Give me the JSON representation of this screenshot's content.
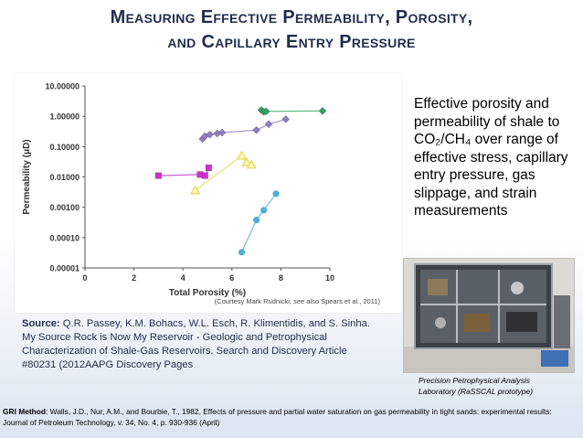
{
  "slide": {
    "title_line1": "Measuring Effective Permeability, Porosity,",
    "title_line2": "and Capillary Entry Pressure"
  },
  "side_text": "Effective porosity and permeability of shale to CO₂/CH₄ over range of effective stress, capillary entry pressure, gas slippage, and strain measurements",
  "photo": {
    "caption": "Precision Petrophysical Analysis Laboratory (RaSSCAL prototype)"
  },
  "source": {
    "label": "Source:",
    "text": "Q.R. Passey, K.M. Bohacs, W.L. Esch, R. Klimentidis, and S. Sinha. My Source Rock is Now My Reservoir - Geologic and Petrophysical Characterization of Shale-Gas Reservoirs. Search and Discovery Article #80231 (2012AAPG Discovery Pages"
  },
  "gri": {
    "label": "GRI Method",
    "text": ": Walls, J.D., Nur, A.M., and Bourbie, T., 1982, Effects of pressure and partial water saturation on gas permeability in tight sands: experimental results: Journal of Petroleum Technology, v. 34, No. 4, p. 930-936 (April)"
  },
  "chart_data": {
    "type": "scatter",
    "xlabel": "Total Porosity (%)",
    "ylabel": "Permeability (μD)",
    "xlim": [
      0,
      10
    ],
    "ylim": [
      1e-05,
      10
    ],
    "y_scale": "log",
    "x_ticks": [
      "0",
      "2",
      "4",
      "6",
      "8",
      "10"
    ],
    "y_ticks": [
      "0.00001",
      "0.00010",
      "0.00100",
      "0.01000",
      "0.10000",
      "1.00000",
      "10.00000"
    ],
    "credit": "(Courtesy Mark Rudnicki; see also Spears et al., 2011)",
    "grid": false,
    "series": [
      {
        "color": "#2ca25f",
        "marker": "diamond",
        "x": [
          7.2,
          7.3,
          7.4,
          9.7
        ],
        "y": [
          1.6,
          1.4,
          1.45,
          1.5
        ]
      },
      {
        "color": "#8e7cc3",
        "marker": "diamond",
        "x": [
          4.8,
          4.9,
          5.1,
          5.4,
          5.6,
          7.0,
          7.5,
          8.2
        ],
        "y": [
          0.18,
          0.22,
          0.25,
          0.27,
          0.29,
          0.35,
          0.55,
          0.8
        ]
      },
      {
        "color": "#cc33cc",
        "marker": "square",
        "x": [
          3.0,
          4.7,
          4.9,
          5.05
        ],
        "y": [
          0.011,
          0.012,
          0.011,
          0.02
        ]
      },
      {
        "color": "#e6d84c",
        "marker": "triangle",
        "x": [
          4.5,
          6.4,
          6.6,
          6.8
        ],
        "y": [
          0.0036,
          0.05,
          0.03,
          0.025
        ]
      },
      {
        "color": "#4bb3d9",
        "marker": "circle",
        "x": [
          6.4,
          7.0,
          7.3,
          7.8
        ],
        "y": [
          3.3e-05,
          0.00038,
          0.0008,
          0.0028
        ]
      }
    ]
  }
}
